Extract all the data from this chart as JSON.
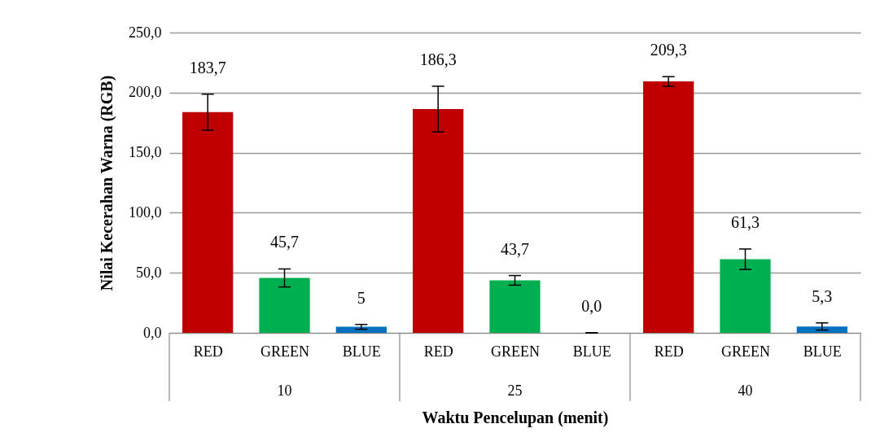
{
  "chart_data": {
    "type": "bar",
    "xlabel": "Waktu Pencelupan  (menit)",
    "ylabel": "Nilai Kecerahan Warna (RGB)",
    "categories": [
      "RED",
      "GREEN",
      "BLUE",
      "RED",
      "GREEN",
      "BLUE",
      "RED",
      "GREEN",
      "BLUE"
    ],
    "values": [
      183.7,
      45.7,
      5,
      186.3,
      43.7,
      0.0,
      209.3,
      61.3,
      5.3
    ],
    "colors": [
      "#c00000",
      "#00b050",
      "#0070c0",
      "#c00000",
      "#00b050",
      "#0070c0",
      "#c00000",
      "#00b050",
      "#0070c0"
    ],
    "errors": [
      15,
      7.5,
      2,
      19,
      4,
      0,
      4,
      8.5,
      3
    ],
    "value_labels": [
      "183,7",
      "45,7",
      "5",
      "186,3",
      "43,7",
      "0,0",
      "209,3",
      "61,3",
      "5,3"
    ],
    "annotations": [
      "10",
      "25",
      "40"
    ],
    "ylim": [
      0,
      250
    ],
    "yticks": [
      {
        "value": 0,
        "label": "0,0"
      },
      {
        "value": 50,
        "label": "50,0"
      },
      {
        "value": 100,
        "label": "100,0"
      },
      {
        "value": 150,
        "label": "150,0"
      },
      {
        "value": 200,
        "label": "200,0"
      },
      {
        "value": 250,
        "label": "250,0"
      }
    ],
    "grid": "y"
  }
}
